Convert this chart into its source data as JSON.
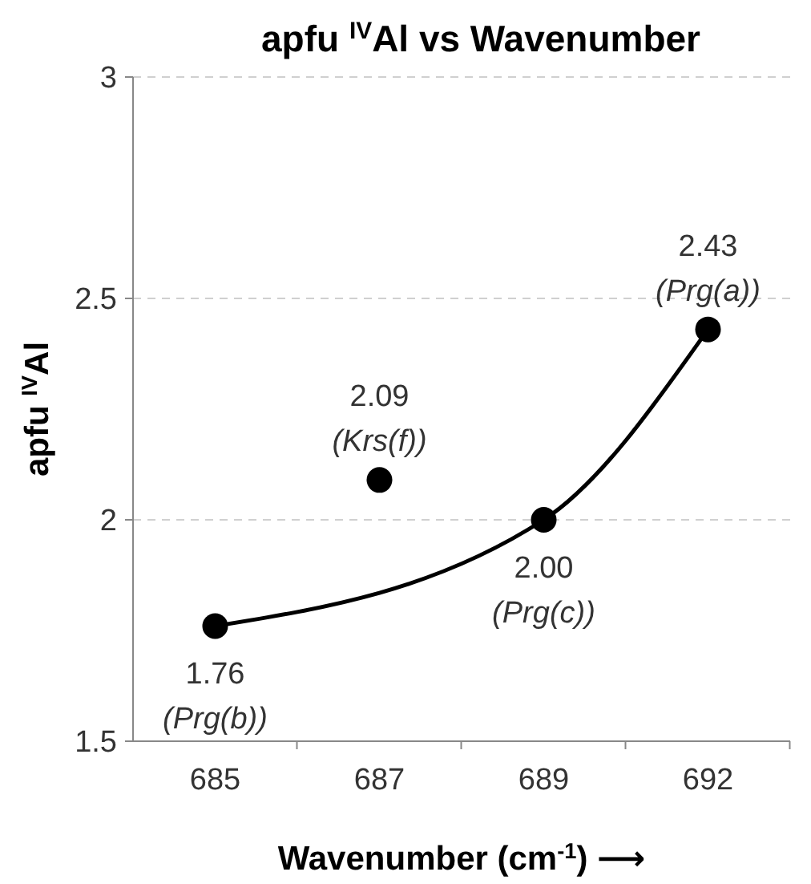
{
  "chart_data": {
    "type": "scatter",
    "title": "apfu $^{IV}$Al vs Wavenumber",
    "xlabel": "Wavenumber (cm$^{-1}$) ⟶",
    "ylabel": "apfu $^{IV}$Al",
    "categories": [
      "685",
      "687",
      "689",
      "692"
    ],
    "series": [
      {
        "type": "line",
        "color": "#000000",
        "values": [
          1.76,
          null,
          2.0,
          2.43
        ],
        "line_style": "solid"
      },
      {
        "color": "#000000",
        "values": [
          1.76,
          2.09,
          2.0,
          2.43
        ],
        "marker": "circle",
        "value_labels": [
          "1.76",
          "2.09",
          "2.00",
          "2.43"
        ]
      }
    ],
    "annotations": [
      {
        "text": "(Prg(b))",
        "x": "685",
        "y": 1.76
      },
      {
        "text": "(Krs(f))",
        "x": "687",
        "y": 2.09
      },
      {
        "text": "(Prg(c))",
        "x": "689",
        "y": 2.0
      },
      {
        "text": "(Prg(a))",
        "x": "692",
        "y": 2.43
      }
    ],
    "ylim": [
      1.5,
      3
    ],
    "yticks": [
      1.5,
      2,
      2.5,
      3
    ],
    "grid": "y"
  }
}
